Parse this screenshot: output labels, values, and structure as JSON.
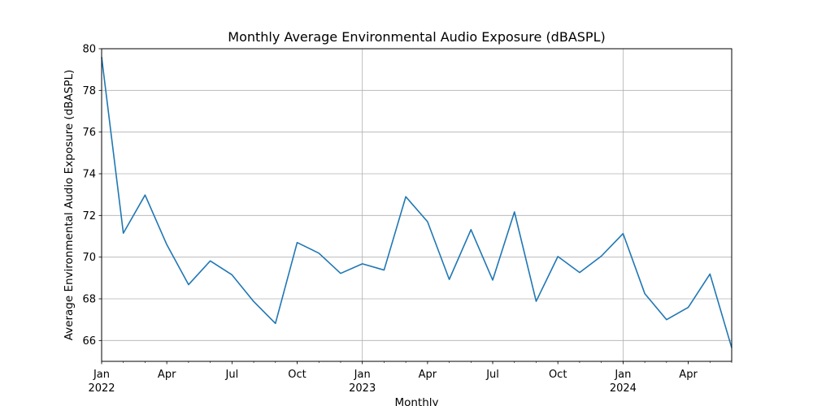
{
  "chart_data": {
    "type": "line",
    "title": "Monthly Average Environmental Audio Exposure (dBASPL)",
    "xlabel": "Monthly",
    "ylabel": "Average Environmental Audio Exposure (dBASPL)",
    "ylim": [
      65,
      80
    ],
    "yticks": [
      66,
      68,
      70,
      72,
      74,
      76,
      78,
      80
    ],
    "x_ticks": [
      {
        "index": 0,
        "label": "Jan",
        "year": "2022"
      },
      {
        "index": 3,
        "label": "Apr",
        "year": ""
      },
      {
        "index": 6,
        "label": "Jul",
        "year": ""
      },
      {
        "index": 9,
        "label": "Oct",
        "year": ""
      },
      {
        "index": 12,
        "label": "Jan",
        "year": "2023"
      },
      {
        "index": 15,
        "label": "Apr",
        "year": ""
      },
      {
        "index": 18,
        "label": "Jul",
        "year": ""
      },
      {
        "index": 21,
        "label": "Oct",
        "year": ""
      },
      {
        "index": 24,
        "label": "Jan",
        "year": "2024"
      },
      {
        "index": 27,
        "label": "Apr",
        "year": ""
      }
    ],
    "grid": true,
    "color": "#1f77b4",
    "series": [
      {
        "x": [
          "2022-01",
          "2022-02",
          "2022-03",
          "2022-04",
          "2022-05",
          "2022-06",
          "2022-07",
          "2022-08",
          "2022-09",
          "2022-10",
          "2022-11",
          "2022-12",
          "2023-01",
          "2023-02",
          "2023-03",
          "2023-04",
          "2023-05",
          "2023-06",
          "2023-07",
          "2023-08",
          "2023-09",
          "2023-10",
          "2023-11",
          "2023-12",
          "2024-01",
          "2024-02",
          "2024-03",
          "2024-04",
          "2024-05",
          "2024-06"
        ],
        "values": [
          79.6,
          71.15,
          72.98,
          70.6,
          68.68,
          69.82,
          69.15,
          67.87,
          66.82,
          70.7,
          70.19,
          69.22,
          69.68,
          69.38,
          72.9,
          71.7,
          68.93,
          71.32,
          68.9,
          72.17,
          67.88,
          70.03,
          69.26,
          70.05,
          71.13,
          68.25,
          67.0,
          67.59,
          69.19,
          65.65
        ]
      }
    ]
  }
}
